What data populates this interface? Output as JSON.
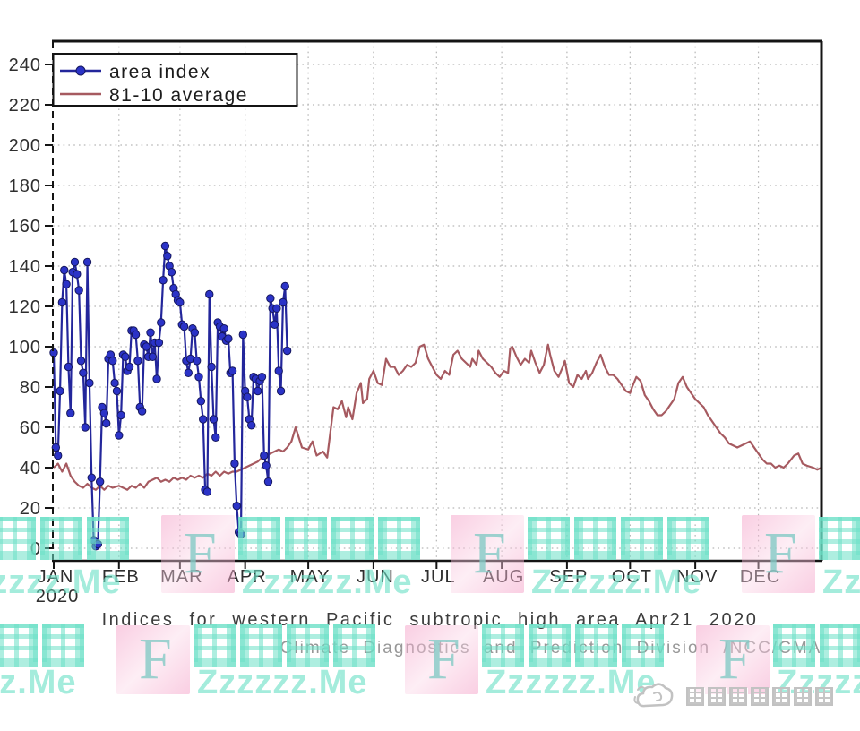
{
  "page": {
    "background": "#ffffff"
  },
  "chart_data": {
    "type": "line",
    "title": "Indices for western Pacific subtropic high area Apr21 2020",
    "subtitle": "Climate Diagnostics and Prediction Division /NCC/CMA",
    "grid": true,
    "legend_position": "top-left",
    "x_axis": {
      "unit": "day_of_year_2020",
      "tick_labels": [
        "JAN",
        "FEB",
        "MAR",
        "APR",
        "MAY",
        "JUN",
        "JUL",
        "AUG",
        "SEP",
        "OCT",
        "NOV",
        "DEC"
      ],
      "month_start_days": [
        1,
        32,
        61,
        92,
        122,
        153,
        183,
        214,
        245,
        275,
        306,
        336
      ],
      "year_label": "2020"
    },
    "y_axis": {
      "min": 0,
      "max": 240,
      "tick_step": 20
    },
    "series": [
      {
        "name": "area index",
        "style": "line+marker",
        "line_color": "#23269b",
        "marker_color": "#2b33c7",
        "start_day": 1,
        "values": [
          97,
          50,
          46,
          78,
          122,
          138,
          131,
          90,
          67,
          137,
          142,
          136,
          128,
          93,
          87,
          60,
          142,
          82,
          35,
          4,
          1,
          2,
          33,
          70,
          67,
          62,
          94,
          96,
          93,
          82,
          78,
          56,
          66,
          96,
          95,
          88,
          90,
          108,
          108,
          106,
          93,
          70,
          68,
          101,
          100,
          95,
          107,
          95,
          102,
          84,
          102,
          112,
          133,
          150,
          145,
          140,
          137,
          129,
          126,
          123,
          122,
          111,
          110,
          93,
          87,
          94,
          109,
          107,
          93,
          85,
          73,
          64,
          29,
          28,
          126,
          90,
          64,
          55,
          112,
          110,
          105,
          109,
          103,
          104,
          87,
          88,
          42,
          21,
          8,
          7,
          106,
          78,
          75,
          64,
          61,
          85,
          84,
          78,
          83,
          85,
          46,
          41,
          33,
          124,
          119,
          111,
          119,
          88,
          78,
          122,
          130,
          98
        ]
      },
      {
        "name": "81-10 average",
        "style": "line",
        "line_color": "#a65a60",
        "points": [
          [
            1,
            40
          ],
          [
            3,
            42
          ],
          [
            5,
            38
          ],
          [
            7,
            42
          ],
          [
            9,
            36
          ],
          [
            11,
            33
          ],
          [
            13,
            31
          ],
          [
            15,
            30
          ],
          [
            17,
            32
          ],
          [
            19,
            30
          ],
          [
            21,
            29
          ],
          [
            23,
            31
          ],
          [
            25,
            29
          ],
          [
            27,
            31
          ],
          [
            29,
            30
          ],
          [
            32,
            31
          ],
          [
            34,
            30
          ],
          [
            36,
            29
          ],
          [
            38,
            31
          ],
          [
            40,
            30
          ],
          [
            42,
            32
          ],
          [
            44,
            30
          ],
          [
            46,
            33
          ],
          [
            48,
            34
          ],
          [
            50,
            35
          ],
          [
            52,
            33
          ],
          [
            54,
            34
          ],
          [
            56,
            33
          ],
          [
            58,
            35
          ],
          [
            60,
            34
          ],
          [
            62,
            35
          ],
          [
            64,
            34
          ],
          [
            66,
            36
          ],
          [
            68,
            35
          ],
          [
            70,
            36
          ],
          [
            72,
            35
          ],
          [
            74,
            37
          ],
          [
            76,
            36
          ],
          [
            78,
            38
          ],
          [
            80,
            36
          ],
          [
            82,
            38
          ],
          [
            84,
            37
          ],
          [
            86,
            38
          ],
          [
            88,
            38
          ],
          [
            90,
            39
          ],
          [
            92,
            40
          ],
          [
            94,
            41
          ],
          [
            96,
            42
          ],
          [
            98,
            43
          ],
          [
            100,
            45
          ],
          [
            102,
            46
          ],
          [
            104,
            47
          ],
          [
            106,
            48
          ],
          [
            108,
            49
          ],
          [
            110,
            48
          ],
          [
            112,
            50
          ],
          [
            114,
            53
          ],
          [
            116,
            60
          ],
          [
            119,
            50
          ],
          [
            122,
            49
          ],
          [
            124,
            53
          ],
          [
            126,
            46
          ],
          [
            129,
            48
          ],
          [
            131,
            45
          ],
          [
            134,
            70
          ],
          [
            136,
            69
          ],
          [
            138,
            73
          ],
          [
            140,
            65
          ],
          [
            141,
            70
          ],
          [
            143,
            64
          ],
          [
            145,
            77
          ],
          [
            147,
            82
          ],
          [
            148,
            72
          ],
          [
            150,
            74
          ],
          [
            151,
            84
          ],
          [
            153,
            88
          ],
          [
            155,
            82
          ],
          [
            157,
            81
          ],
          [
            159,
            94
          ],
          [
            161,
            90
          ],
          [
            163,
            90
          ],
          [
            165,
            86
          ],
          [
            167,
            88
          ],
          [
            169,
            91
          ],
          [
            171,
            90
          ],
          [
            173,
            92
          ],
          [
            175,
            100
          ],
          [
            177,
            101
          ],
          [
            179,
            94
          ],
          [
            181,
            90
          ],
          [
            183,
            86
          ],
          [
            185,
            84
          ],
          [
            187,
            88
          ],
          [
            189,
            86
          ],
          [
            191,
            96
          ],
          [
            193,
            98
          ],
          [
            195,
            94
          ],
          [
            197,
            92
          ],
          [
            199,
            90
          ],
          [
            200,
            94
          ],
          [
            202,
            91
          ],
          [
            203,
            98
          ],
          [
            205,
            94
          ],
          [
            207,
            92
          ],
          [
            209,
            90
          ],
          [
            211,
            87
          ],
          [
            213,
            85
          ],
          [
            215,
            88
          ],
          [
            217,
            87
          ],
          [
            218,
            99
          ],
          [
            219,
            100
          ],
          [
            221,
            95
          ],
          [
            223,
            91
          ],
          [
            225,
            94
          ],
          [
            227,
            92
          ],
          [
            228,
            98
          ],
          [
            230,
            92
          ],
          [
            232,
            87
          ],
          [
            234,
            91
          ],
          [
            236,
            101
          ],
          [
            237,
            96
          ],
          [
            239,
            88
          ],
          [
            241,
            85
          ],
          [
            243,
            90
          ],
          [
            244,
            93
          ],
          [
            246,
            82
          ],
          [
            248,
            80
          ],
          [
            250,
            86
          ],
          [
            252,
            84
          ],
          [
            254,
            88
          ],
          [
            255,
            84
          ],
          [
            257,
            87
          ],
          [
            259,
            92
          ],
          [
            261,
            96
          ],
          [
            263,
            90
          ],
          [
            265,
            86
          ],
          [
            267,
            86
          ],
          [
            269,
            84
          ],
          [
            271,
            81
          ],
          [
            273,
            78
          ],
          [
            275,
            77
          ],
          [
            276,
            80
          ],
          [
            278,
            85
          ],
          [
            280,
            83
          ],
          [
            282,
            76
          ],
          [
            284,
            73
          ],
          [
            286,
            69
          ],
          [
            288,
            66
          ],
          [
            290,
            66
          ],
          [
            292,
            68
          ],
          [
            294,
            71
          ],
          [
            296,
            74
          ],
          [
            298,
            82
          ],
          [
            300,
            85
          ],
          [
            302,
            80
          ],
          [
            304,
            77
          ],
          [
            306,
            74
          ],
          [
            308,
            72
          ],
          [
            310,
            70
          ],
          [
            312,
            66
          ],
          [
            314,
            63
          ],
          [
            316,
            60
          ],
          [
            318,
            57
          ],
          [
            320,
            55
          ],
          [
            322,
            52
          ],
          [
            324,
            51
          ],
          [
            326,
            50
          ],
          [
            328,
            51
          ],
          [
            330,
            52
          ],
          [
            332,
            53
          ],
          [
            334,
            50
          ],
          [
            336,
            47
          ],
          [
            338,
            44
          ],
          [
            340,
            42
          ],
          [
            342,
            42
          ],
          [
            344,
            40
          ],
          [
            346,
            41
          ],
          [
            348,
            40
          ],
          [
            350,
            42
          ],
          [
            353,
            46
          ],
          [
            355,
            47
          ],
          [
            357,
            42
          ],
          [
            359,
            41
          ],
          [
            362,
            40
          ],
          [
            364,
            39
          ],
          [
            366,
            40
          ]
        ]
      }
    ],
    "legend": {
      "items": [
        "area index",
        "81-10 average"
      ]
    }
  },
  "colors": {
    "grid": "#b6b6b6",
    "axis": "#141414",
    "tick_text": "#2e2e2e",
    "blue_line": "#23269b",
    "blue_marker": "#2b33c7",
    "red_line": "#a65a60",
    "watermark_teal": "#6ce0c6",
    "watermark_pink": "#f49ec6",
    "logo_gray": "#c2c2c2"
  },
  "watermark": {
    "brand_initial": "F",
    "brand_cjk": "峰哥博客",
    "brand_url": "Zzzzzz.Me",
    "tiles": [
      {
        "row": "A",
        "x": -145
      },
      {
        "row": "A",
        "x": 180
      },
      {
        "row": "A",
        "x": 503
      },
      {
        "row": "A",
        "x": 828
      },
      {
        "row": "B",
        "x": -195
      },
      {
        "row": "B",
        "x": 130
      },
      {
        "row": "B",
        "x": 452
      },
      {
        "row": "B",
        "x": 777
      }
    ]
  },
  "footer": {
    "logo_text": "中国气象爱好者"
  }
}
